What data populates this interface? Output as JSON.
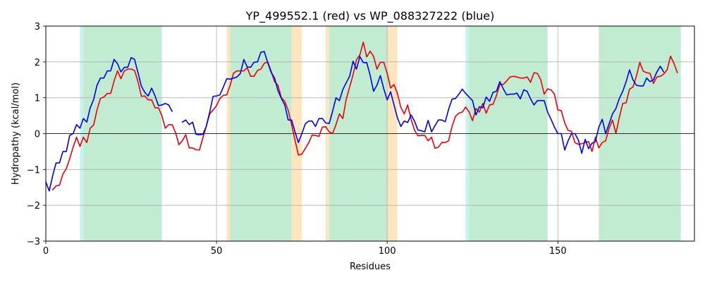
{
  "chart_data": {
    "type": "line",
    "title": "YP_499552.1 (red) vs WP_088327222 (blue)",
    "xlabel": "Residues",
    "ylabel": "Hydropathy (kcal/mol)",
    "xlim": [
      0,
      190
    ],
    "ylim": [
      -3,
      3
    ],
    "xticks": [
      0,
      50,
      100,
      150
    ],
    "yticks": [
      -3,
      -2,
      -1,
      0,
      1,
      2,
      3
    ],
    "grid": true,
    "zero_line": true,
    "colors": {
      "red": "#e8000b",
      "blue": "#0000e6",
      "shared": "#c2ecd2",
      "red_only": "#fde5bf",
      "blue_only": "#c5f3f2",
      "grid": "#b0b0b0"
    },
    "regions": [
      {
        "kind": "blue_only",
        "start": 10,
        "end": 11
      },
      {
        "kind": "shared",
        "start": 11,
        "end": 34
      },
      {
        "kind": "red_only",
        "start": 53,
        "end": 54
      },
      {
        "kind": "shared",
        "start": 54,
        "end": 72
      },
      {
        "kind": "red_only",
        "start": 72,
        "end": 75
      },
      {
        "kind": "red_only",
        "start": 82,
        "end": 83
      },
      {
        "kind": "shared",
        "start": 83,
        "end": 100
      },
      {
        "kind": "red_only",
        "start": 100,
        "end": 103
      },
      {
        "kind": "blue_only",
        "start": 123,
        "end": 124
      },
      {
        "kind": "shared",
        "start": 124,
        "end": 147
      },
      {
        "kind": "shared",
        "start": 162,
        "end": 186
      }
    ],
    "series": [
      {
        "color": "red",
        "start_x": 2,
        "values": [
          -1.57,
          -1.46,
          -1.44,
          -1.13,
          -0.98,
          -0.7,
          -0.38,
          -0.1,
          -0.36,
          -0.1,
          -0.25,
          0.15,
          0.24,
          0.66,
          0.98,
          1.02,
          1.12,
          1.12,
          1.47,
          1.75,
          1.53,
          1.75,
          1.8,
          1.8,
          1.76,
          1.45,
          1.04,
          1.05,
          0.94,
          0.94,
          0.72,
          0.72,
          0.5,
          0.15,
          0.25,
          0.25,
          0.03,
          -0.31,
          -0.2,
          -0.03,
          -0.4,
          -0.4,
          -0.45,
          -0.46,
          -0.12,
          0.2,
          0.55,
          0.66,
          0.78,
          0.98,
          1.07,
          1.08,
          1.35,
          1.69,
          1.75,
          1.75,
          1.75,
          1.84,
          1.6,
          1.6,
          1.76,
          1.8,
          1.96,
          2.0,
          1.74,
          1.45,
          1.35,
          1.0,
          0.9,
          0.65,
          0.25,
          -0.18,
          -0.6,
          -0.57,
          -0.42,
          -0.26,
          -0.04,
          -0.05,
          -0.08,
          0.18,
          0.19,
          0.05,
          0.0,
          0.25,
          0.55,
          0.42,
          0.96,
          1.3,
          1.64,
          2.06,
          2.2,
          2.55,
          2.14,
          2.3,
          2.16,
          1.8,
          1.99,
          1.99,
          1.68,
          1.27,
          1.37,
          1.12,
          0.73,
          0.55,
          0.8,
          0.4,
          0.1,
          -0.06,
          -0.05,
          -0.05,
          -0.2,
          -0.1,
          -0.41,
          -0.38,
          -0.25,
          -0.25,
          -0.2,
          0.2,
          0.48,
          0.57,
          0.6,
          0.74,
          0.6,
          0.36,
          0.7,
          0.6,
          0.84,
          0.57,
          0.8,
          0.82,
          1.06,
          1.37,
          1.37,
          1.47,
          1.58,
          1.6,
          1.58,
          1.55,
          1.55,
          1.58,
          1.43,
          1.7,
          1.68,
          1.5,
          1.1,
          1.25,
          1.22,
          1.1,
          0.66,
          0.64,
          0.3,
          0.09,
          0.06,
          -0.25,
          -0.3,
          -0.28,
          -0.25,
          -0.22,
          -0.5,
          -0.1,
          -0.4,
          -0.25,
          -0.2,
          0.15,
          0.38,
          0.0,
          0.45,
          0.84,
          0.86,
          1.24,
          1.3,
          1.6,
          1.99,
          1.74,
          1.7,
          1.68,
          1.4,
          1.58,
          1.6,
          1.66,
          1.78,
          2.16,
          1.96,
          1.7
        ]
      },
      {
        "color": "blue",
        "start_x": 0,
        "segments": [
          {
            "start_x": 0,
            "values": [
              -1.35,
              -1.6,
              -1.18,
              -0.82,
              -0.82,
              -0.5,
              -0.5,
              -0.05,
              0.0,
              0.25,
              0.15,
              0.42,
              0.32,
              0.72,
              0.95,
              1.35,
              1.55,
              1.55,
              1.75,
              1.75,
              2.07,
              1.95,
              1.72,
              1.85,
              1.85,
              2.12,
              2.07,
              1.7,
              1.32,
              1.15,
              1.05,
              1.27,
              1.05,
              0.78,
              0.8,
              0.84,
              0.8,
              0.62
            ]
          },
          {
            "start_x": 40,
            "values": [
              0.32,
              0.38,
              0.25,
              0.32,
              -0.02,
              -0.03,
              -0.02,
              0.2,
              0.6,
              1.04,
              1.05,
              1.08,
              1.3,
              1.53,
              1.52,
              1.55,
              1.58,
              1.68,
              2.07,
              1.86,
              1.85,
              1.99,
              2.0,
              2.27,
              2.29,
              1.98,
              1.71,
              1.55,
              1.2,
              0.98,
              0.8,
              0.38,
              0.38,
              0.05,
              -0.25,
              0.0,
              0.27,
              0.35,
              0.35,
              0.2,
              0.42,
              0.42,
              0.3,
              0.28,
              0.62,
              1.0,
              0.92,
              1.23,
              1.42,
              1.6,
              2.02,
              1.8,
              2.15,
              1.98,
              1.98,
              1.63,
              1.18,
              1.35,
              1.62,
              1.25,
              0.94,
              1.17,
              0.8,
              0.44,
              0.2,
              0.35,
              0.31,
              0.52,
              0.35,
              0.1,
              0.08,
              0.05,
              0.37,
              0.05,
              0.22,
              0.38,
              0.38,
              0.33,
              0.68,
              0.96,
              0.98,
              1.1,
              1.24,
              1.12,
              1.02,
              0.92,
              0.52,
              0.75,
              0.72,
              1.02,
              0.9,
              1.15,
              1.18,
              1.45,
              1.25,
              1.08,
              1.1,
              1.1,
              1.13,
              0.97,
              1.22,
              1.18,
              0.97,
              0.8,
              0.92,
              0.92,
              0.92,
              0.6,
              0.4,
              0.18,
              0.0,
              0.0,
              -0.46,
              -0.2,
              0.0,
              0.0,
              -0.18,
              -0.55,
              -0.16,
              -0.42,
              -0.27,
              -0.22,
              0.18,
              0.4,
              0.0,
              0.27,
              0.55,
              0.7,
              0.98,
              1.18,
              1.45,
              1.78,
              1.5,
              1.35,
              1.33,
              1.33,
              1.55,
              1.45,
              1.5,
              1.72,
              1.88,
              1.72
            ]
          }
        ]
      }
    ]
  }
}
